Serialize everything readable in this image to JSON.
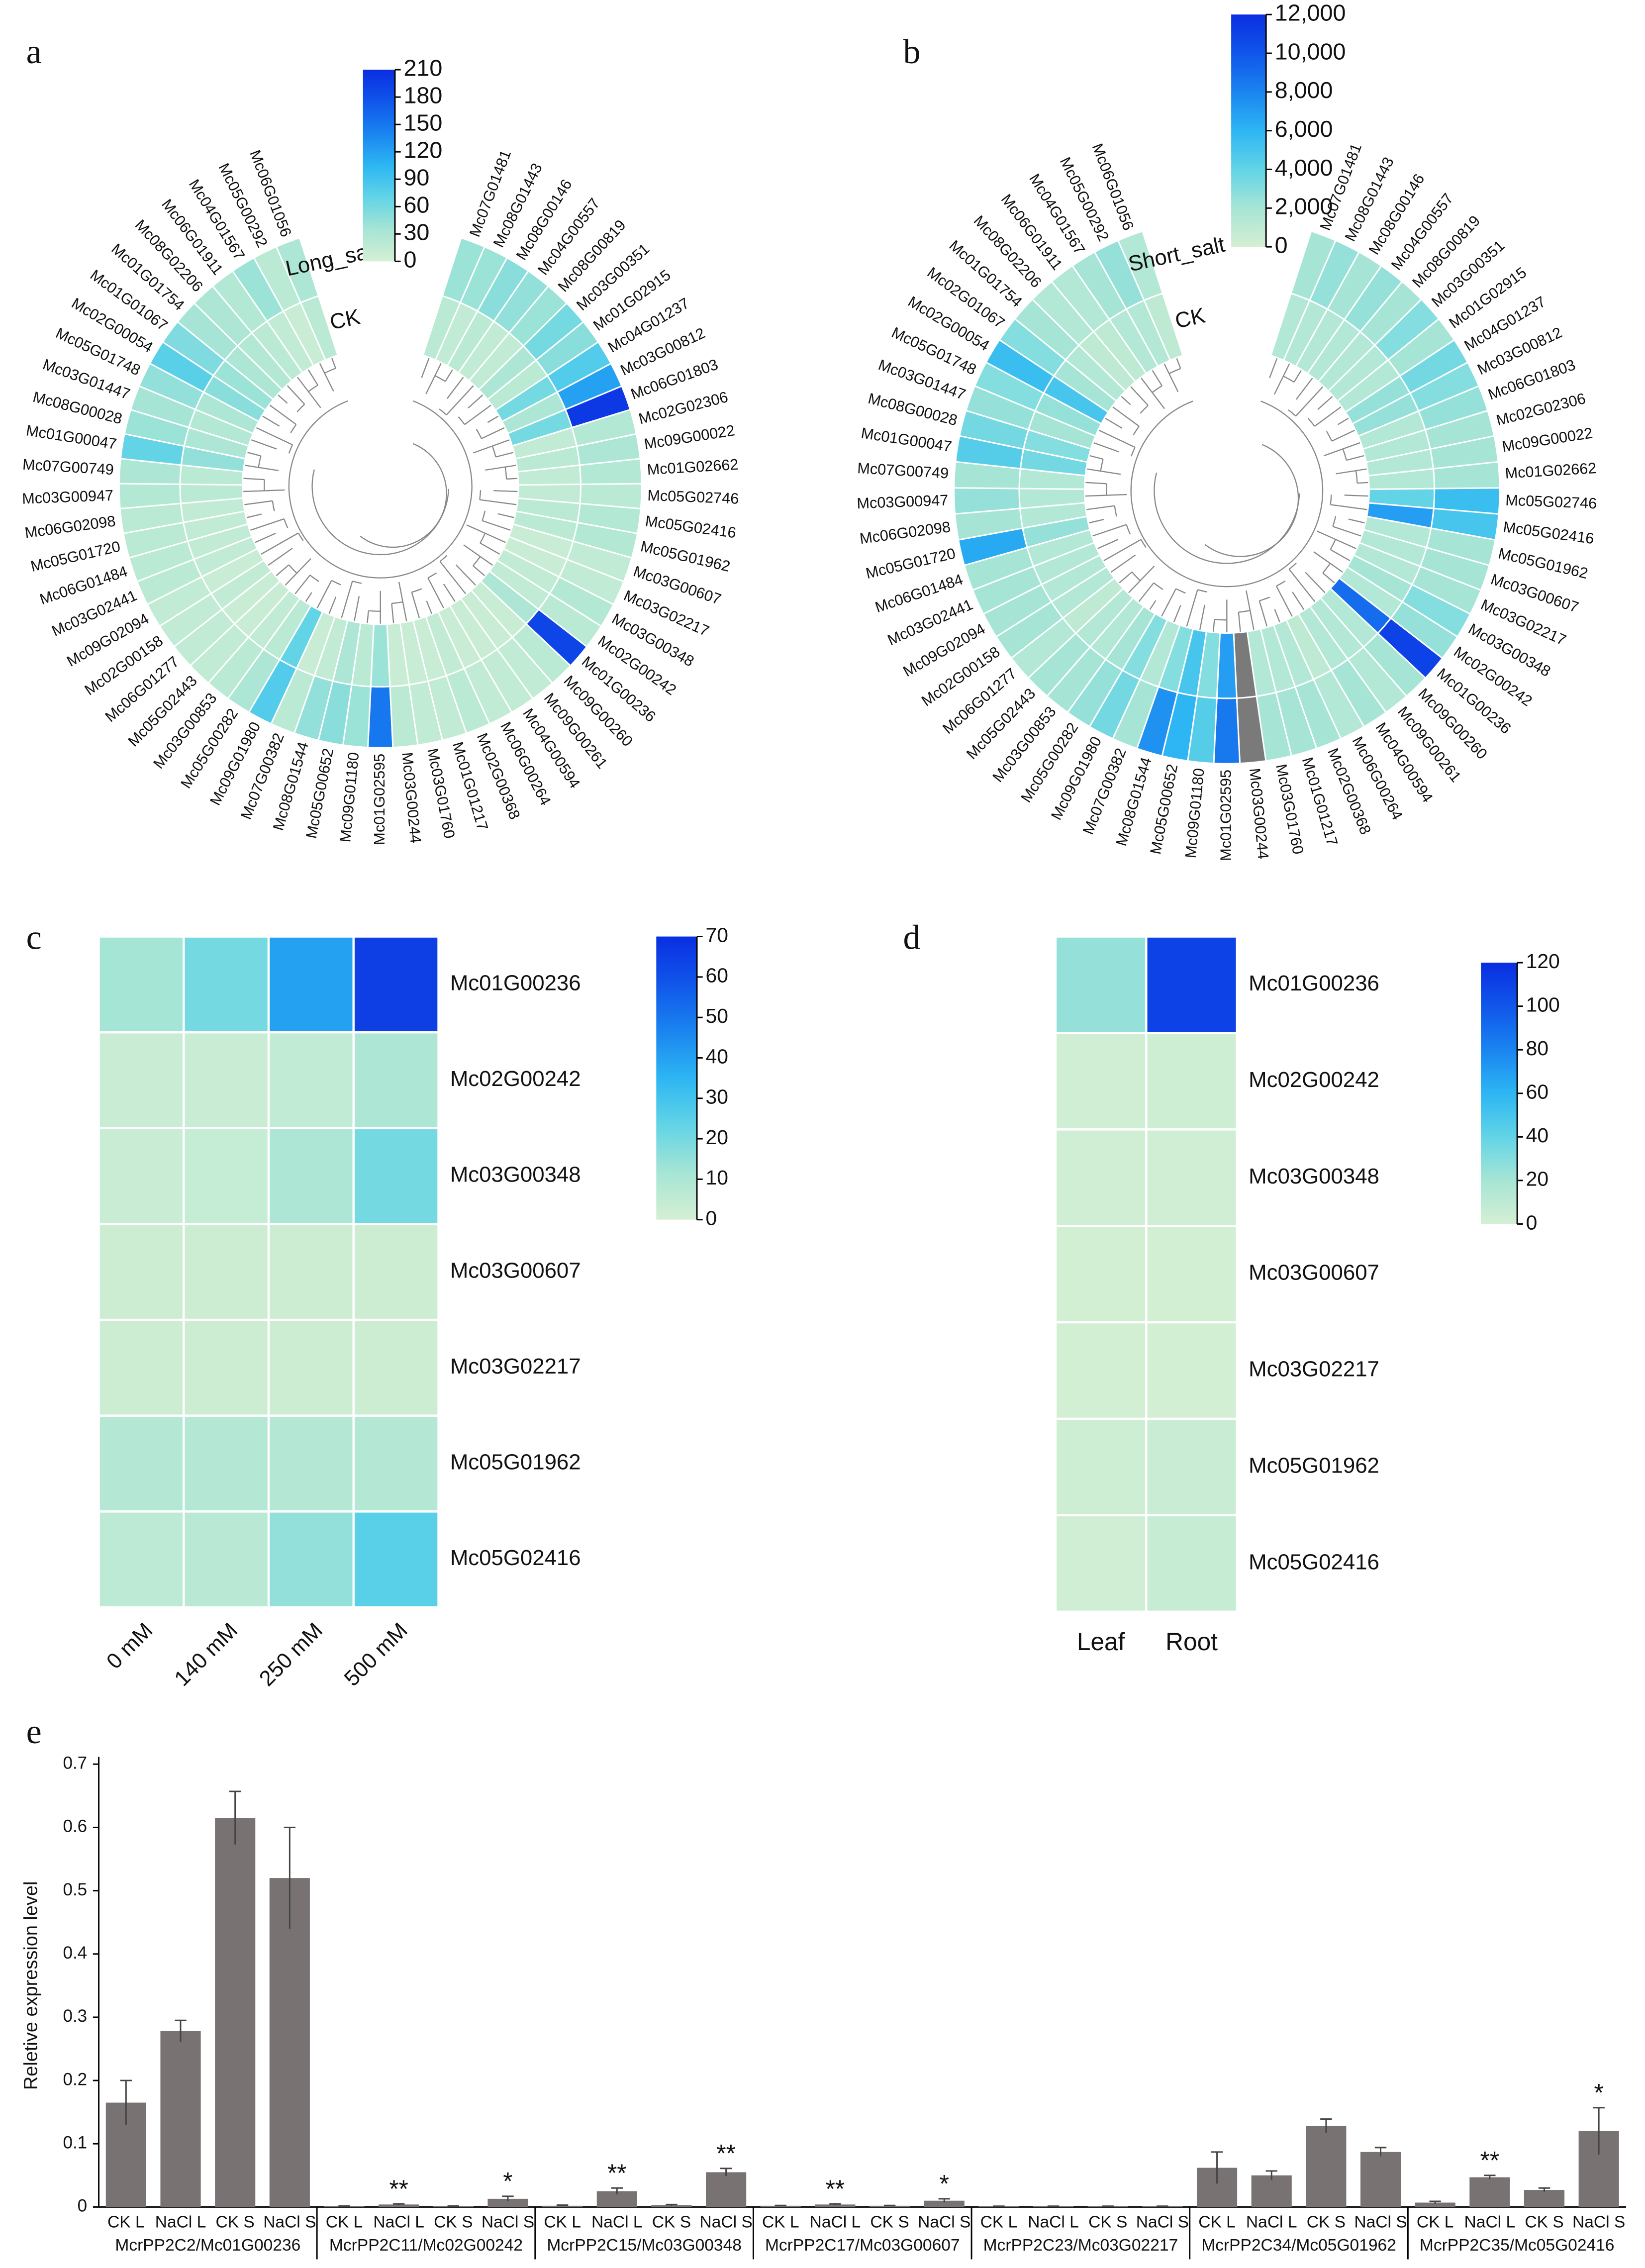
{
  "chart_data": [
    {
      "type": "circular_heatmap",
      "panel": "a",
      "categories": [
        "Mc06G01056",
        "Mc05G00292",
        "Mc04G01567",
        "Mc06G01911",
        "Mc08G02206",
        "Mc01G01754",
        "Mc01G01067",
        "Mc02G00054",
        "Mc05G01748",
        "Mc03G01447",
        "Mc08G00028",
        "Mc01G00047",
        "Mc07G00749",
        "Mc03G00947",
        "Mc06G02098",
        "Mc05G01720",
        "Mc06G01484",
        "Mc03G02441",
        "Mc09G02094",
        "Mc02G00158",
        "Mc06G01277",
        "Mc05G02443",
        "Mc03G00853",
        "Mc05G00282",
        "Mc09G01980",
        "Mc07G00382",
        "Mc08G01544",
        "Mc05G00652",
        "Mc09G01180",
        "Mc01G02595",
        "Mc03G00244",
        "Mc03G01760",
        "Mc01G01217",
        "Mc02G00368",
        "Mc06G00264",
        "Mc04G00594",
        "Mc09G00261",
        "Mc09G00260",
        "Mc01G00236",
        "Mc02G00242",
        "Mc03G00348",
        "Mc03G02217",
        "Mc03G00607",
        "Mc05G01962",
        "Mc05G02416",
        "Mc05G02746",
        "Mc01G02662",
        "Mc09G00022",
        "Mc02G02306",
        "Mc06G01803",
        "Mc03G00812",
        "Mc04G01237",
        "Mc01G02915",
        "Mc03G00351",
        "Mc08G00819",
        "Mc04G00557",
        "Mc08G00146",
        "Mc08G01443",
        "Mc07G01481"
      ],
      "series": [
        {
          "name": "CK",
          "values": [
            20,
            10,
            15,
            20,
            25,
            30,
            40,
            50,
            30,
            25,
            30,
            45,
            20,
            20,
            15,
            15,
            15,
            15,
            10,
            15,
            10,
            10,
            15,
            20,
            70,
            10,
            15,
            30,
            20,
            40,
            10,
            10,
            10,
            15,
            10,
            10,
            10,
            10,
            30,
            15,
            15,
            10,
            10,
            20,
            20,
            15,
            15,
            20,
            15,
            60,
            30,
            60,
            20,
            30,
            15,
            15,
            20,
            15,
            20
          ]
        },
        {
          "name": "Long_salt",
          "values": [
            30,
            20,
            40,
            25,
            30,
            35,
            55,
            75,
            45,
            35,
            40,
            70,
            30,
            25,
            20,
            20,
            20,
            20,
            15,
            15,
            15,
            15,
            20,
            30,
            80,
            20,
            45,
            50,
            40,
            150,
            20,
            15,
            15,
            20,
            15,
            15,
            15,
            20,
            190,
            20,
            25,
            15,
            15,
            25,
            25,
            20,
            25,
            30,
            25,
            200,
            120,
            80,
            50,
            60,
            40,
            45,
            50,
            40,
            40
          ]
        }
      ],
      "zlim": [
        0,
        210
      ],
      "zticks": [
        0,
        30,
        60,
        90,
        120,
        150,
        180,
        210
      ],
      "colormap": [
        "#d5efd3",
        "#a6e5d5",
        "#62d4e6",
        "#2db6f3",
        "#1a84f0",
        "#1056ea",
        "#0a2ee2"
      ]
    },
    {
      "type": "circular_heatmap",
      "panel": "b",
      "categories": [
        "Mc06G01056",
        "Mc05G00292",
        "Mc04G01567",
        "Mc06G01911",
        "Mc08G02206",
        "Mc01G01754",
        "Mc02G01067",
        "Mc02G00054",
        "Mc05G01748",
        "Mc03G01447",
        "Mc08G00028",
        "Mc01G00047",
        "Mc07G00749",
        "Mc03G00947",
        "Mc06G02098",
        "Mc05G01720",
        "Mc06G01484",
        "Mc03G02441",
        "Mc09G02094",
        "Mc02G00158",
        "Mc06G01277",
        "Mc05G02443",
        "Mc03G00853",
        "Mc05G00282",
        "Mc09G01980",
        "Mc07G00382",
        "Mc08G01544",
        "Mc05G00652",
        "Mc09G01180",
        "Mc01G02595",
        "Mc03G00244",
        "Mc03G01760",
        "Mc01G01217",
        "Mc02G00368",
        "Mc06G00264",
        "Mc04G00594",
        "Mc09G00261",
        "Mc09G00260",
        "Mc01G00236",
        "Mc02G00242",
        "Mc03G00348",
        "Mc03G02217",
        "Mc03G00607",
        "Mc05G01962",
        "Mc05G02416",
        "Mc05G02746",
        "Mc01G02662",
        "Mc09G00022",
        "Mc02G02306",
        "Mc06G01803",
        "Mc03G00812",
        "Mc04G01237",
        "Mc01G02915",
        "Mc03G00351",
        "Mc08G00819",
        "Mc04G00557",
        "Mc08G00146",
        "Mc08G01443",
        "Mc07G01481"
      ],
      "series": [
        {
          "name": "CK",
          "values": [
            1000,
            1500,
            1500,
            1000,
            1000,
            1500,
            2000,
            5000,
            2500,
            2000,
            3000,
            3500,
            1500,
            1500,
            1500,
            2500,
            1500,
            1500,
            1500,
            1500,
            1000,
            1500,
            1500,
            2000,
            3000,
            1500,
            3000,
            5000,
            3000,
            7000,
            null,
            1500,
            1500,
            1500,
            1000,
            1500,
            1500,
            1500,
            9000,
            1500,
            2000,
            1500,
            1500,
            1500,
            7000,
            4000,
            1500,
            1500,
            1500,
            1500,
            2500,
            2500,
            1500,
            1500,
            1500,
            1500,
            1500,
            1500,
            1500
          ]
        },
        {
          "name": "Short_salt",
          "values": [
            1500,
            2500,
            2000,
            1500,
            1500,
            2000,
            3000,
            5500,
            3000,
            2500,
            3500,
            4500,
            2000,
            2500,
            2000,
            6500,
            2000,
            2000,
            2000,
            2000,
            1500,
            2000,
            2000,
            2500,
            3500,
            2000,
            7500,
            6000,
            4500,
            8500,
            null,
            2000,
            2000,
            2000,
            1500,
            2000,
            1500,
            2000,
            11000,
            2500,
            3000,
            2000,
            2000,
            2000,
            5000,
            5500,
            2000,
            2000,
            2000,
            2500,
            3000,
            3500,
            2000,
            3000,
            2000,
            2500,
            2000,
            2500,
            2000
          ]
        }
      ],
      "zlim": [
        0,
        12000
      ],
      "zticks": [
        0,
        {
          "value": 2000,
          "label": "2,000"
        },
        {
          "value": 4000,
          "label": "4,000"
        },
        {
          "value": 6000,
          "label": "6,000"
        },
        {
          "value": 8000,
          "label": "8,000"
        },
        {
          "value": 10000,
          "label": "10,000"
        },
        {
          "value": 12000,
          "label": "12,000"
        }
      ],
      "colormap": [
        "#d5efd3",
        "#a6e5d5",
        "#62d4e6",
        "#2db6f3",
        "#1a84f0",
        "#1056ea",
        "#0a2ee2"
      ],
      "missing_color": "#7a7a7a"
    },
    {
      "type": "heatmap",
      "panel": "c",
      "rows": [
        "Mc01G00236",
        "Mc02G00242",
        "Mc03G00348",
        "Mc03G00607",
        "Mc03G02217",
        "Mc05G01962",
        "Mc05G02416"
      ],
      "columns": [
        "0 mM",
        "140 mM",
        "250 mM",
        "500 mM"
      ],
      "values": [
        [
          12,
          20,
          40,
          65
        ],
        [
          3,
          3,
          5,
          10
        ],
        [
          3,
          4,
          10,
          20
        ],
        [
          2,
          2,
          2,
          2
        ],
        [
          2,
          2,
          2,
          2
        ],
        [
          8,
          8,
          8,
          8
        ],
        [
          6,
          7,
          15,
          25
        ]
      ],
      "zlim": [
        0,
        70
      ],
      "zticks": [
        0,
        10,
        20,
        30,
        40,
        50,
        60,
        70
      ],
      "colormap": [
        "#d5efd3",
        "#a6e5d5",
        "#62d4e6",
        "#2db6f3",
        "#1a84f0",
        "#1056ea",
        "#0a2ee2"
      ]
    },
    {
      "type": "heatmap",
      "panel": "d",
      "rows": [
        "Mc01G00236",
        "Mc02G00242",
        "Mc03G00348",
        "Mc03G00607",
        "Mc03G02217",
        "Mc05G01962",
        "Mc05G02416"
      ],
      "columns": [
        "Leaf",
        "Root"
      ],
      "values": [
        [
          25,
          110
        ],
        [
          2,
          3
        ],
        [
          2,
          2
        ],
        [
          1,
          1
        ],
        [
          1,
          1
        ],
        [
          3,
          5
        ],
        [
          2,
          6
        ]
      ],
      "zlim": [
        0,
        120
      ],
      "zticks": [
        0,
        20,
        40,
        60,
        80,
        100,
        120
      ],
      "colormap": [
        "#d5efd3",
        "#a6e5d5",
        "#62d4e6",
        "#2db6f3",
        "#1a84f0",
        "#1056ea",
        "#0a2ee2"
      ]
    },
    {
      "type": "bar",
      "panel": "e",
      "ylabel": "Reletive expression level",
      "categories": [
        "CK L",
        "NaCl L",
        "CK S",
        "NaCl S",
        "CK L",
        "NaCl L",
        "CK S",
        "NaCl S",
        "CK L",
        "NaCl L",
        "CK S",
        "NaCl S",
        "CK L",
        "NaCl L",
        "CK S",
        "NaCl S",
        "CK L",
        "NaCl L",
        "CK S",
        "NaCl S",
        "CK L",
        "NaCl L",
        "CK S",
        "NaCl S",
        "CK L",
        "NaCl L",
        "CK S",
        "NaCl S"
      ],
      "groups": [
        "McrPP2C2/Mc01G00236",
        "McrPP2C11/Mc02G00242",
        "McrPP2C15/Mc03G00348",
        "McrPP2C17/Mc03G00607",
        "McrPP2C23/Mc03G02217",
        "McrPP2C34/Mc05G01962",
        "McrPP2C35/Mc05G02416"
      ],
      "values": [
        0.165,
        0.278,
        0.615,
        0.52,
        0.001,
        0.004,
        0.001,
        0.013,
        0.002,
        0.025,
        0.003,
        0.055,
        0.002,
        0.004,
        0.002,
        0.01,
        0.001,
        0.001,
        0.001,
        0.001,
        0.062,
        0.05,
        0.128,
        0.087,
        0.007,
        0.047,
        0.027,
        0.12
      ],
      "errors": [
        0.035,
        0.017,
        0.042,
        0.08,
        0.0005,
        0.001,
        0.0005,
        0.004,
        0.001,
        0.005,
        0.001,
        0.006,
        0.0005,
        0.001,
        0.0005,
        0.003,
        0.0003,
        0.0003,
        0.0003,
        0.0003,
        0.025,
        0.007,
        0.011,
        0.007,
        0.002,
        0.003,
        0.003,
        0.037
      ],
      "significance": [
        null,
        null,
        null,
        null,
        null,
        "**",
        null,
        "*",
        null,
        "**",
        null,
        "**",
        null,
        "**",
        null,
        "*",
        null,
        null,
        null,
        null,
        null,
        null,
        null,
        null,
        null,
        "**",
        null,
        "*"
      ],
      "color": "#787272",
      "ylim": [
        0,
        0.7
      ],
      "yticks": [
        0,
        0.1,
        0.2,
        0.3,
        0.4,
        0.5,
        0.6,
        0.7
      ]
    }
  ]
}
